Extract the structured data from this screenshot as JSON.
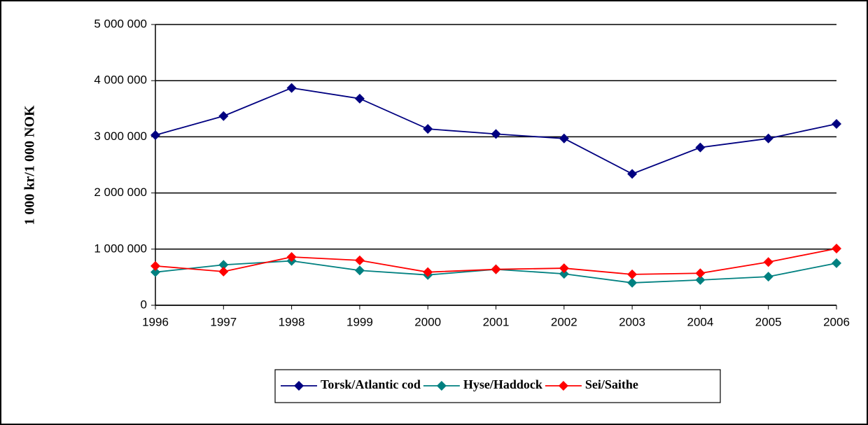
{
  "chart_data": {
    "type": "line",
    "y_label": "1 000 kr/1 000 NOK",
    "categories": [
      "1996",
      "1997",
      "1998",
      "1999",
      "2000",
      "2001",
      "2002",
      "2003",
      "2004",
      "2005",
      "2006"
    ],
    "series": [
      {
        "name": "Torsk/Atlantic cod",
        "color": "#000080",
        "values": [
          3030000,
          3370000,
          3870000,
          3680000,
          3140000,
          3050000,
          2970000,
          2340000,
          2810000,
          2970000,
          3230000
        ]
      },
      {
        "name": "Hyse/Haddock",
        "color": "#008080",
        "values": [
          590000,
          720000,
          790000,
          620000,
          540000,
          640000,
          560000,
          400000,
          450000,
          510000,
          750000
        ]
      },
      {
        "name": "Sei/Saithe",
        "color": "#ff0000",
        "values": [
          700000,
          600000,
          860000,
          800000,
          590000,
          640000,
          660000,
          550000,
          570000,
          770000,
          1010000
        ]
      }
    ],
    "ylim": [
      0,
      5000000
    ],
    "yticks": [
      0,
      {
        "value": 1000000,
        "label": "1 000 000"
      },
      {
        "value": 2000000,
        "label": "2 000 000"
      },
      {
        "value": 3000000,
        "label": "3 000 000"
      },
      {
        "value": 4000000,
        "label": "4 000 000"
      },
      {
        "value": 5000000,
        "label": "5 000 000"
      }
    ],
    "grid": true,
    "legend": "bottom"
  }
}
